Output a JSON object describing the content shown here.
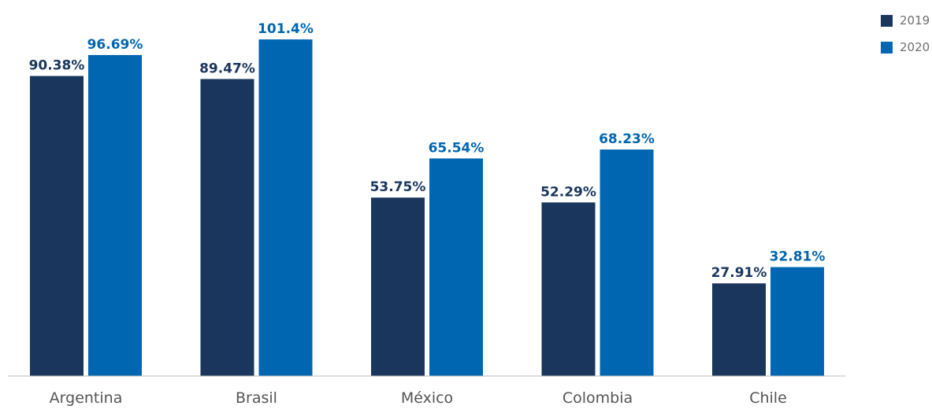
{
  "chart_data": {
    "type": "bar",
    "title": "",
    "xlabel": "",
    "ylabel": "",
    "ylim": [
      0,
      105
    ],
    "grid": false,
    "legend_position": "top-right",
    "categories": [
      "Argentina",
      "Brasil",
      "México",
      "Colombia",
      "Chile"
    ],
    "series": [
      {
        "name": "2019",
        "color": "#1a365d",
        "values": [
          90.38,
          89.47,
          53.75,
          52.29,
          27.91
        ],
        "labels": [
          "90.38%",
          "89.47%",
          "53.75%",
          "52.29%",
          "27.91%"
        ]
      },
      {
        "name": "2020",
        "color": "#0066b1",
        "values": [
          96.69,
          101.4,
          65.54,
          68.23,
          32.81
        ],
        "labels": [
          "96.69%",
          "101.4%",
          "65.54%",
          "68.23%",
          "32.81%"
        ]
      }
    ]
  }
}
